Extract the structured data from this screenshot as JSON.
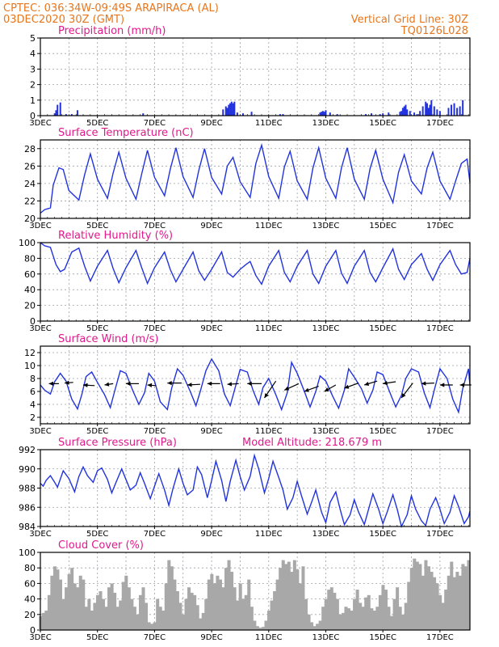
{
  "header": {
    "left_line1": "CPTEC:   036:34W-09:49S   ARAPIRACA (AL)",
    "left_line2": "03DEC2020 30Z (GMT)",
    "right_line1": "Vertical Grid Line: 30Z",
    "right_line2": "TQ0126L028"
  },
  "model_altitude": "Model Altitude: 218.679 m",
  "x_ticks": [
    "3DEC",
    "5DEC",
    "7DEC",
    "9DEC",
    "11DEC",
    "13DEC",
    "15DEC",
    "17DEC"
  ],
  "colors": {
    "header": "#e8761c",
    "title": "#e0198c",
    "series": "#2233dd",
    "cloud": "#a8a8a8",
    "grid": "#9aa0a6"
  },
  "chart_data": [
    {
      "id": "precipitation",
      "type": "bar",
      "title": "Precipitation (mm/h)",
      "ylim": [
        0,
        5
      ],
      "yticks": [
        0,
        1,
        2,
        3,
        4,
        5
      ],
      "xlim": [
        3.0,
        18.05
      ],
      "x": [
        3.5,
        3.55,
        3.6,
        3.7,
        3.9,
        4.1,
        4.3,
        6.6,
        9.4,
        9.5,
        9.55,
        9.6,
        9.65,
        9.7,
        9.75,
        9.8,
        9.9,
        10.1,
        10.4,
        11.4,
        11.5,
        12.8,
        12.85,
        12.9,
        12.95,
        13.0,
        13.15,
        13.4,
        14.4,
        14.6,
        14.9,
        15.0,
        15.2,
        15.6,
        15.65,
        15.7,
        15.75,
        15.8,
        15.85,
        15.95,
        16.1,
        16.2,
        16.3,
        16.4,
        16.5,
        16.55,
        16.6,
        16.65,
        16.7,
        16.8,
        16.9,
        17.0,
        17.3,
        17.4,
        17.5,
        17.6,
        17.7,
        17.8
      ],
      "values": [
        0.15,
        0.35,
        0.7,
        0.85,
        0.1,
        0.1,
        0.35,
        0.15,
        0.4,
        0.6,
        0.5,
        0.7,
        0.8,
        0.9,
        0.8,
        0.9,
        0.2,
        0.15,
        0.25,
        0.1,
        0.1,
        0.2,
        0.25,
        0.3,
        0.25,
        0.35,
        0.2,
        0.1,
        0.1,
        0.15,
        0.1,
        0.15,
        0.2,
        0.25,
        0.3,
        0.5,
        0.6,
        0.7,
        0.4,
        0.3,
        0.2,
        0.1,
        0.3,
        0.6,
        0.9,
        0.8,
        0.5,
        0.7,
        1.0,
        0.6,
        0.4,
        0.3,
        0.5,
        0.7,
        0.8,
        0.5,
        0.6,
        1.0
      ]
    },
    {
      "id": "temperature",
      "type": "line",
      "title": "Surface Temperature (nC)",
      "ylim": [
        20,
        29
      ],
      "yticks": [
        20,
        22,
        24,
        26,
        28
      ],
      "xlim": [
        3.0,
        18.05
      ],
      "x": [
        3.0,
        3.15,
        3.35,
        3.45,
        3.65,
        3.8,
        4.0,
        4.35,
        4.55,
        4.75,
        5.0,
        5.35,
        5.55,
        5.75,
        6.0,
        6.35,
        6.55,
        6.75,
        7.0,
        7.35,
        7.55,
        7.75,
        8.0,
        8.35,
        8.55,
        8.75,
        9.0,
        9.35,
        9.55,
        9.75,
        10.0,
        10.35,
        10.55,
        10.75,
        11.0,
        11.35,
        11.55,
        11.75,
        12.0,
        12.35,
        12.55,
        12.75,
        13.0,
        13.35,
        13.55,
        13.75,
        14.0,
        14.35,
        14.55,
        14.75,
        15.0,
        15.35,
        15.55,
        15.75,
        16.0,
        16.35,
        16.55,
        16.75,
        17.0,
        17.35,
        17.55,
        17.75,
        17.95,
        18.05
      ],
      "values": [
        20.6,
        21.0,
        21.2,
        23.8,
        25.8,
        25.6,
        23.2,
        22.1,
        25.0,
        27.4,
        24.5,
        22.3,
        25.2,
        27.6,
        24.6,
        22.2,
        25.1,
        27.8,
        24.7,
        22.6,
        25.6,
        28.1,
        24.8,
        22.4,
        25.5,
        28.0,
        24.7,
        22.8,
        26.0,
        27.0,
        24.2,
        22.4,
        26.3,
        28.4,
        24.8,
        22.3,
        25.9,
        27.7,
        24.3,
        22.2,
        25.8,
        28.1,
        24.6,
        22.3,
        25.8,
        28.1,
        24.5,
        22.2,
        25.7,
        27.8,
        24.5,
        21.8,
        25.3,
        27.3,
        24.3,
        22.8,
        25.8,
        27.6,
        24.3,
        22.2,
        24.3,
        26.3,
        26.8,
        24.1
      ]
    },
    {
      "id": "humidity",
      "type": "line",
      "title": "Relative Humidity (%)",
      "ylim": [
        0,
        100
      ],
      "yticks": [
        0,
        20,
        40,
        60,
        80,
        100
      ],
      "xlim": [
        3.0,
        18.05
      ],
      "x": [
        3.0,
        3.15,
        3.35,
        3.55,
        3.7,
        3.85,
        4.1,
        4.35,
        4.55,
        4.75,
        5.0,
        5.35,
        5.55,
        5.75,
        6.0,
        6.35,
        6.55,
        6.75,
        7.0,
        7.35,
        7.55,
        7.75,
        8.0,
        8.35,
        8.55,
        8.75,
        9.0,
        9.35,
        9.55,
        9.75,
        10.0,
        10.2,
        10.35,
        10.55,
        10.75,
        11.0,
        11.35,
        11.55,
        11.75,
        12.0,
        12.35,
        12.55,
        12.75,
        13.0,
        13.35,
        13.55,
        13.75,
        14.0,
        14.35,
        14.55,
        14.75,
        15.0,
        15.35,
        15.55,
        15.75,
        16.0,
        16.35,
        16.55,
        16.75,
        17.0,
        17.35,
        17.55,
        17.75,
        17.95,
        18.05
      ],
      "values": [
        100,
        96,
        94,
        72,
        63,
        66,
        88,
        93,
        70,
        51,
        70,
        90,
        67,
        49,
        68,
        90,
        68,
        48,
        68,
        88,
        66,
        50,
        66,
        88,
        64,
        52,
        66,
        88,
        62,
        56,
        66,
        72,
        76,
        58,
        47,
        70,
        90,
        62,
        50,
        70,
        90,
        60,
        48,
        70,
        90,
        61,
        48,
        70,
        90,
        62,
        50,
        68,
        92,
        66,
        53,
        72,
        86,
        66,
        52,
        72,
        90,
        72,
        60,
        62,
        80
      ]
    },
    {
      "id": "wind",
      "type": "line",
      "title": "Surface Wind (m/s)",
      "ylim": [
        1,
        13
      ],
      "yticks": [
        2,
        4,
        6,
        8,
        10,
        12
      ],
      "xlim": [
        3.0,
        18.05
      ],
      "x": [
        3.0,
        3.15,
        3.35,
        3.5,
        3.7,
        3.9,
        4.1,
        4.3,
        4.45,
        4.6,
        4.8,
        5.0,
        5.25,
        5.45,
        5.6,
        5.8,
        6.0,
        6.25,
        6.45,
        6.65,
        6.8,
        7.0,
        7.2,
        7.45,
        7.6,
        7.8,
        8.0,
        8.25,
        8.45,
        8.6,
        8.8,
        9.0,
        9.25,
        9.45,
        9.65,
        9.8,
        10.0,
        10.25,
        10.45,
        10.65,
        10.8,
        11.0,
        11.25,
        11.45,
        11.65,
        11.8,
        12.0,
        12.25,
        12.45,
        12.65,
        12.8,
        13.0,
        13.25,
        13.45,
        13.65,
        13.8,
        14.0,
        14.25,
        14.45,
        14.65,
        14.8,
        15.0,
        15.25,
        15.45,
        15.65,
        15.8,
        16.0,
        16.25,
        16.45,
        16.65,
        16.8,
        17.0,
        17.25,
        17.45,
        17.65,
        17.8,
        18.0,
        18.05
      ],
      "values": [
        7.0,
        6.2,
        5.6,
        7.5,
        8.8,
        7.6,
        4.8,
        3.3,
        5.5,
        8.3,
        9.0,
        7.4,
        5.5,
        3.5,
        6.0,
        9.2,
        8.8,
        6.0,
        4.0,
        5.8,
        8.8,
        7.6,
        4.4,
        3.2,
        6.5,
        9.5,
        8.5,
        6.0,
        3.8,
        6.0,
        9.2,
        11.0,
        9.2,
        5.6,
        3.8,
        6.2,
        9.4,
        9.0,
        6.2,
        4.0,
        6.6,
        8.0,
        5.5,
        3.2,
        5.8,
        10.5,
        8.8,
        6.0,
        3.6,
        6.0,
        8.4,
        7.6,
        5.2,
        3.4,
        6.2,
        9.5,
        8.2,
        6.4,
        4.2,
        6.2,
        9.0,
        8.6,
        5.8,
        3.6,
        5.4,
        8.0,
        9.5,
        9.0,
        5.8,
        3.5,
        6.2,
        9.5,
        8.0,
        4.8,
        2.8,
        6.5,
        9.5,
        7.0
      ],
      "arrows": [
        {
          "x": 3.3,
          "y": 7.2,
          "dx": 0.35,
          "dy": 0
        },
        {
          "x": 3.85,
          "y": 7.3,
          "dx": 0.3,
          "dy": 0.1
        },
        {
          "x": 4.5,
          "y": 7.0,
          "dx": 0.4,
          "dy": -0.1
        },
        {
          "x": 5.25,
          "y": 7.0,
          "dx": 0.3,
          "dy": 0.2
        },
        {
          "x": 6.0,
          "y": 7.2,
          "dx": 0.45,
          "dy": 0
        },
        {
          "x": 6.75,
          "y": 7.0,
          "dx": 0.3,
          "dy": -0.1
        },
        {
          "x": 7.45,
          "y": 7.3,
          "dx": 0.5,
          "dy": 0
        },
        {
          "x": 8.15,
          "y": 7.0,
          "dx": 0.45,
          "dy": 0.1
        },
        {
          "x": 8.85,
          "y": 7.2,
          "dx": 0.45,
          "dy": 0
        },
        {
          "x": 9.55,
          "y": 7.1,
          "dx": 0.4,
          "dy": 0.1
        },
        {
          "x": 10.25,
          "y": 7.2,
          "dx": 0.5,
          "dy": 0
        },
        {
          "x": 10.85,
          "y": 5.0,
          "dx": 0.4,
          "dy": 2.6
        },
        {
          "x": 11.55,
          "y": 6.2,
          "dx": 0.5,
          "dy": 1.0
        },
        {
          "x": 12.25,
          "y": 6.0,
          "dx": 0.5,
          "dy": 0.8
        },
        {
          "x": 12.95,
          "y": 6.0,
          "dx": 0.4,
          "dy": 1.0
        },
        {
          "x": 13.65,
          "y": 6.5,
          "dx": 0.5,
          "dy": 0.8
        },
        {
          "x": 14.35,
          "y": 7.0,
          "dx": 0.45,
          "dy": 0.6
        },
        {
          "x": 15.0,
          "y": 7.2,
          "dx": 0.45,
          "dy": 0.3
        },
        {
          "x": 15.65,
          "y": 5.0,
          "dx": 0.4,
          "dy": 2.3
        },
        {
          "x": 16.35,
          "y": 7.2,
          "dx": 0.45,
          "dy": 0.1
        },
        {
          "x": 17.0,
          "y": 7.0,
          "dx": 0.45,
          "dy": 0
        },
        {
          "x": 17.7,
          "y": 7.0,
          "dx": 0.4,
          "dy": 0
        }
      ]
    },
    {
      "id": "pressure",
      "type": "line",
      "title": "Surface Pressure (hPa)",
      "ylim": [
        984,
        992
      ],
      "yticks": [
        984,
        986,
        988,
        990,
        992
      ],
      "xlim": [
        3.0,
        18.05
      ],
      "x": [
        3.0,
        3.1,
        3.2,
        3.35,
        3.5,
        3.6,
        3.8,
        4.0,
        4.2,
        4.35,
        4.5,
        4.65,
        4.85,
        5.0,
        5.15,
        5.35,
        5.5,
        5.65,
        5.85,
        6.0,
        6.15,
        6.35,
        6.5,
        6.65,
        6.85,
        7.0,
        7.15,
        7.35,
        7.5,
        7.65,
        7.85,
        8.0,
        8.15,
        8.35,
        8.5,
        8.65,
        8.85,
        9.0,
        9.15,
        9.35,
        9.5,
        9.65,
        9.85,
        10.0,
        10.15,
        10.35,
        10.5,
        10.65,
        10.85,
        11.0,
        11.15,
        11.35,
        11.5,
        11.65,
        11.85,
        12.0,
        12.15,
        12.35,
        12.5,
        12.65,
        12.85,
        13.0,
        13.15,
        13.35,
        13.5,
        13.65,
        13.85,
        14.0,
        14.15,
        14.35,
        14.5,
        14.65,
        14.85,
        15.0,
        15.15,
        15.35,
        15.5,
        15.65,
        15.85,
        16.0,
        16.15,
        16.35,
        16.5,
        16.65,
        16.85,
        17.0,
        17.15,
        17.35,
        17.5,
        17.65,
        17.85,
        18.0,
        18.05
      ],
      "values": [
        988.5,
        988.2,
        988.8,
        989.3,
        988.6,
        988.1,
        989.8,
        989.0,
        987.6,
        989.2,
        990.2,
        989.3,
        988.6,
        989.8,
        990.1,
        988.9,
        987.5,
        988.6,
        990.0,
        988.9,
        987.8,
        988.3,
        989.6,
        988.5,
        986.9,
        988.2,
        989.5,
        987.8,
        986.2,
        988.0,
        990.0,
        988.5,
        987.3,
        987.8,
        990.2,
        989.4,
        987.0,
        988.8,
        990.8,
        988.8,
        986.6,
        988.7,
        990.9,
        989.2,
        987.8,
        989.2,
        991.4,
        990.0,
        987.5,
        989.0,
        990.8,
        989.1,
        987.8,
        985.8,
        987.0,
        988.7,
        987.2,
        985.3,
        986.5,
        987.8,
        985.5,
        984.4,
        986.5,
        987.6,
        985.8,
        984.2,
        985.2,
        986.8,
        985.5,
        984.2,
        985.8,
        987.4,
        985.8,
        984.3,
        985.5,
        987.3,
        985.8,
        984.0,
        985.2,
        987.2,
        985.8,
        984.6,
        984.1,
        985.8,
        987.0,
        985.8,
        984.3,
        985.5,
        987.2,
        986.1,
        984.3,
        985.0,
        985.6
      ]
    },
    {
      "id": "cloud",
      "type": "bar",
      "title": "Cloud Cover (%)",
      "ylim": [
        0,
        100
      ],
      "yticks": [
        0,
        20,
        40,
        60,
        80,
        100
      ],
      "xlim": [
        3.0,
        18.05
      ],
      "x": [
        3.0,
        3.1,
        3.2,
        3.3,
        3.4,
        3.5,
        3.6,
        3.7,
        3.8,
        3.9,
        4.0,
        4.1,
        4.2,
        4.3,
        4.4,
        4.5,
        4.6,
        4.7,
        4.8,
        4.9,
        5.0,
        5.1,
        5.2,
        5.3,
        5.4,
        5.5,
        5.6,
        5.7,
        5.8,
        5.9,
        6.0,
        6.1,
        6.2,
        6.3,
        6.4,
        6.5,
        6.6,
        6.7,
        6.8,
        6.9,
        7.0,
        7.1,
        7.2,
        7.3,
        7.4,
        7.5,
        7.6,
        7.7,
        7.8,
        7.9,
        8.0,
        8.1,
        8.2,
        8.3,
        8.4,
        8.5,
        8.6,
        8.7,
        8.8,
        8.9,
        9.0,
        9.1,
        9.2,
        9.3,
        9.4,
        9.5,
        9.6,
        9.7,
        9.8,
        9.9,
        10.0,
        10.1,
        10.2,
        10.3,
        10.4,
        10.5,
        10.6,
        10.7,
        10.8,
        10.9,
        11.0,
        11.1,
        11.2,
        11.3,
        11.4,
        11.5,
        11.6,
        11.7,
        11.8,
        11.9,
        12.0,
        12.1,
        12.2,
        12.3,
        12.4,
        12.5,
        12.6,
        12.7,
        12.8,
        12.9,
        13.0,
        13.1,
        13.2,
        13.3,
        13.4,
        13.5,
        13.6,
        13.7,
        13.8,
        13.9,
        14.0,
        14.1,
        14.2,
        14.3,
        14.4,
        14.5,
        14.6,
        14.7,
        14.8,
        14.9,
        15.0,
        15.1,
        15.2,
        15.3,
        15.4,
        15.5,
        15.6,
        15.7,
        15.8,
        15.9,
        16.0,
        16.1,
        16.2,
        16.3,
        16.4,
        16.5,
        16.6,
        16.7,
        16.8,
        16.9,
        17.0,
        17.1,
        17.2,
        17.3,
        17.4,
        17.5,
        17.6,
        17.7,
        17.8,
        17.9,
        18.0
      ],
      "values": [
        18,
        22,
        25,
        45,
        70,
        82,
        78,
        65,
        40,
        55,
        72,
        80,
        60,
        55,
        70,
        65,
        30,
        40,
        25,
        35,
        45,
        50,
        40,
        30,
        55,
        60,
        48,
        30,
        38,
        62,
        70,
        55,
        40,
        30,
        20,
        45,
        55,
        35,
        10,
        8,
        10,
        40,
        30,
        25,
        60,
        90,
        82,
        65,
        50,
        35,
        20,
        40,
        55,
        48,
        45,
        32,
        15,
        22,
        40,
        65,
        72,
        60,
        70,
        65,
        55,
        80,
        90,
        75,
        55,
        38,
        60,
        40,
        45,
        65,
        30,
        12,
        5,
        3,
        4,
        12,
        25,
        38,
        50,
        65,
        80,
        90,
        85,
        88,
        75,
        90,
        78,
        60,
        82,
        40,
        20,
        10,
        5,
        8,
        12,
        30,
        40,
        52,
        55,
        48,
        40,
        20,
        22,
        30,
        28,
        25,
        40,
        52,
        35,
        30,
        42,
        45,
        28,
        25,
        30,
        45,
        58,
        52,
        30,
        18,
        40,
        55,
        30,
        20,
        35,
        62,
        80,
        92,
        88,
        85,
        70,
        90,
        82,
        75,
        68,
        60,
        45,
        35,
        52,
        70,
        88,
        68,
        75,
        70,
        85,
        82,
        90
      ]
    }
  ]
}
